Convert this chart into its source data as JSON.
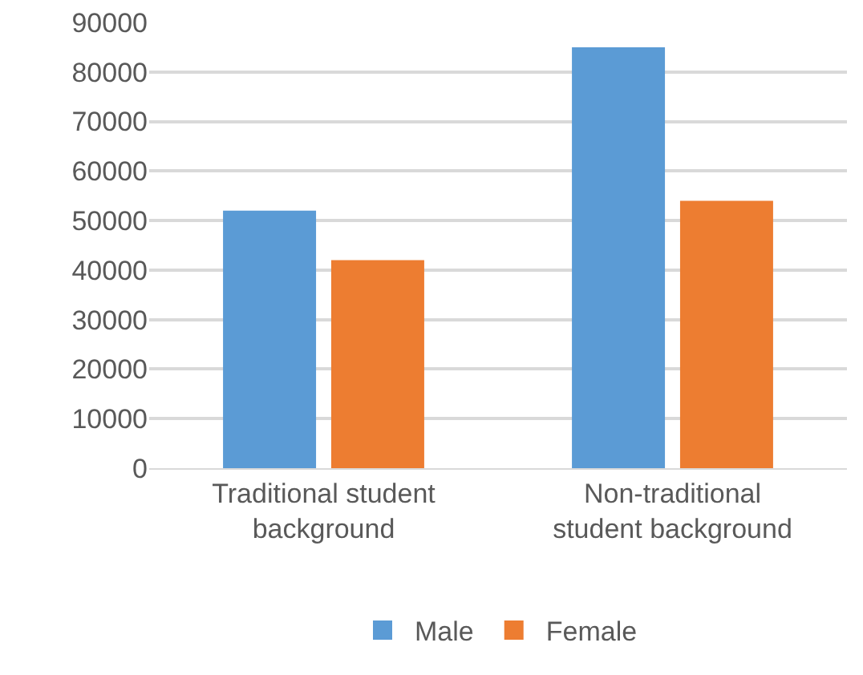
{
  "chart_data": {
    "type": "bar",
    "categories": [
      "Traditional student background",
      "Non-traditional student background"
    ],
    "series": [
      {
        "name": "Male",
        "color": "#5b9bd5",
        "values": [
          52000,
          85000
        ]
      },
      {
        "name": "Female",
        "color": "#ed7d31",
        "values": [
          42000,
          54000
        ]
      }
    ],
    "ylim": [
      0,
      90000
    ],
    "yticks": [
      0,
      10000,
      20000,
      30000,
      40000,
      50000,
      60000,
      70000,
      80000,
      90000
    ],
    "grid": "y",
    "legend": "bottom"
  }
}
